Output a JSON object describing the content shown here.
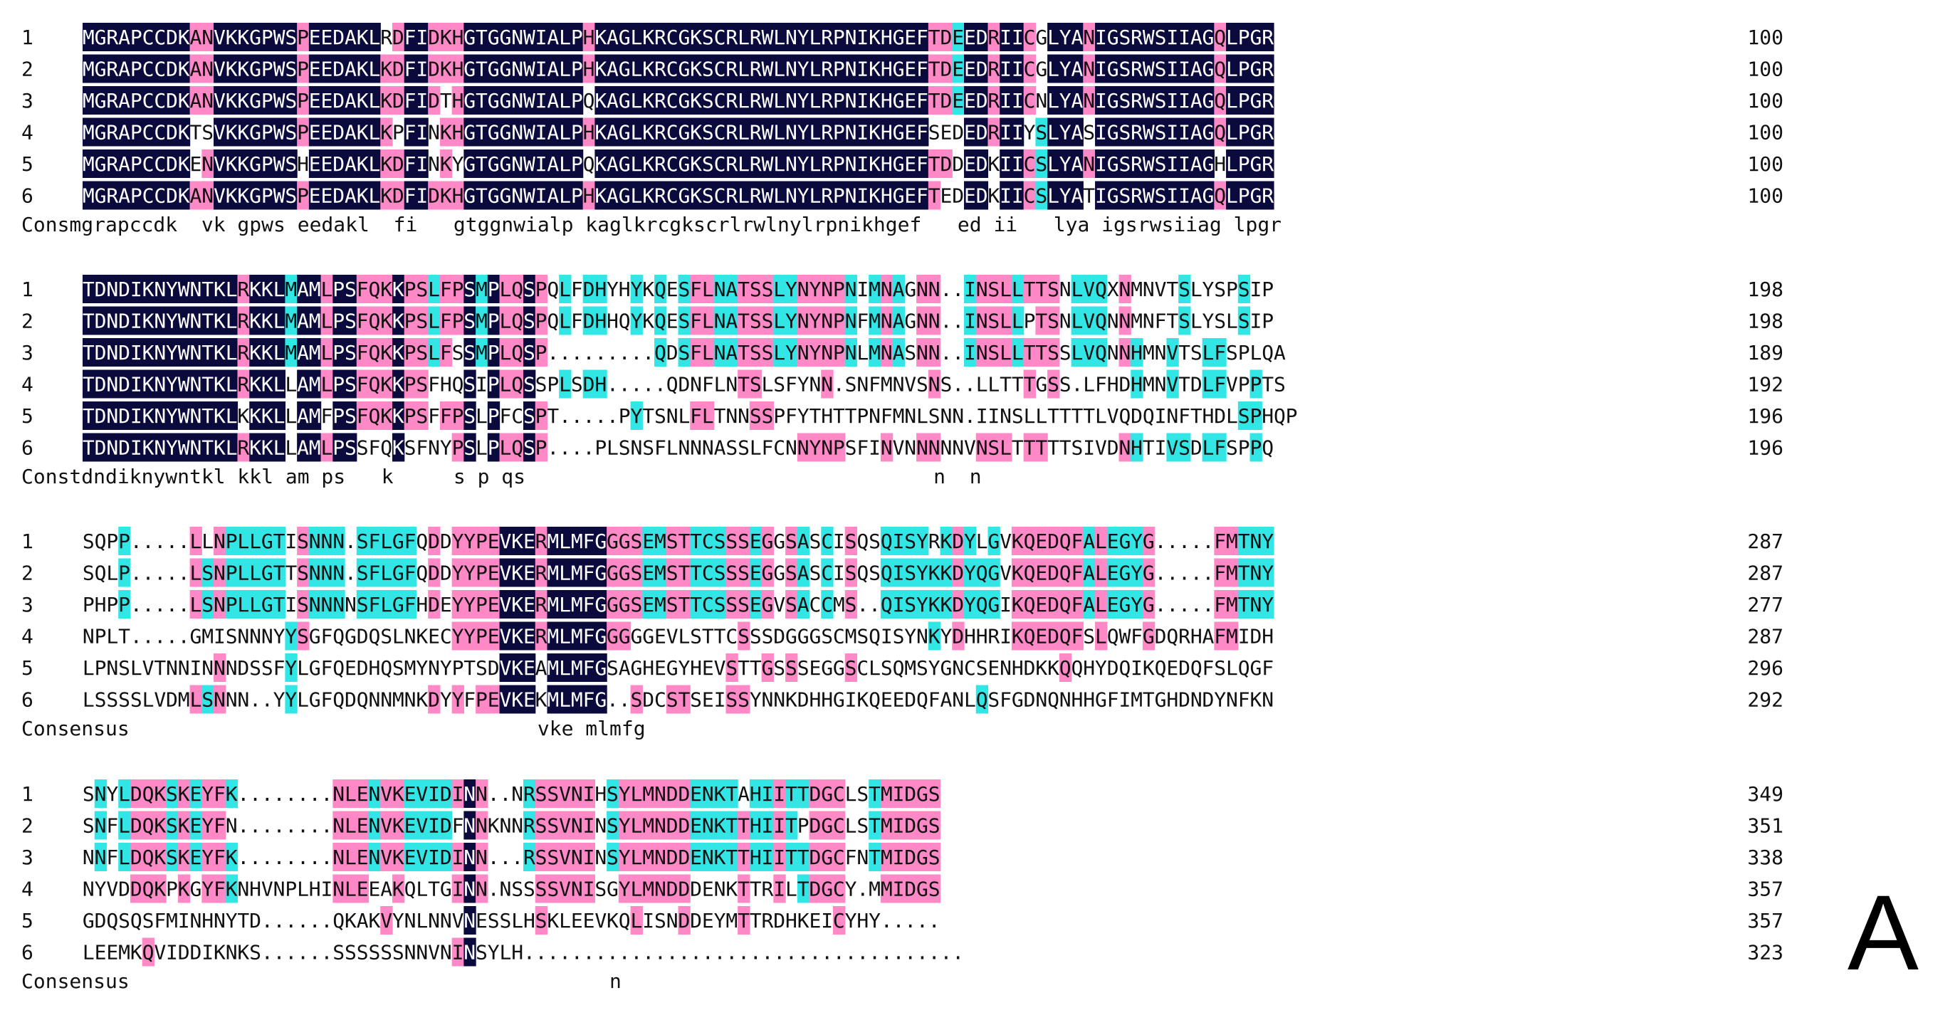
{
  "panel_label": "A",
  "colors": {
    "identical": "#0a0a3c",
    "high": "#ff88c6",
    "partial": "#33e6e6",
    "text_dark": "#111111",
    "text_light": "#ffffff"
  },
  "blocks": [
    {
      "rows": [
        {
          "id": "1",
          "seq": "MGRAPCCDKANVKKGPWSPEEDAKLRDFIDKHGTGGNWIALPHKAGLKRCGKSCRLRWLNYLRPNIKHGEFTDEEDRIICGLYANIGSRWSIIAGQLPGR",
          "end": "100"
        },
        {
          "id": "2",
          "seq": "MGRAPCCDKANVKKGPWSPEEDAKLKDFIDKHGTGGNWIALPHKAGLKRCGKSCRLRWLNYLRPNIKHGEFTDEEDRIICGLYANIGSRWSIIAGQLPGR",
          "end": "100"
        },
        {
          "id": "3",
          "seq": "MGRAPCCDKANVKKGPWSPEEDAKLKDFIDTHGTGGNWIALPQKAGLKRCGKSCRLRWLNYLRPNIKHGEFTDEEDRIICNLYANIGSRWSIIAGQLPGR",
          "end": "100"
        },
        {
          "id": "4",
          "seq": "MGRAPCCDKTSVKKGPWSPEEDAKLKPFINKHGTGGNWIALPHKAGLKRCGKSCRLRWLNYLRPNIKHGEFSEDEDRIIYSLYASIGSRWSIIAGQLPGR",
          "end": "100"
        },
        {
          "id": "5",
          "seq": "MGRAPCCDKENVKKGPWSHEEDAKLKDFINKYGTGGNWIALPQKAGLKRCGKSCRLRWLNYLRPNIKHGEFTDDEDKIICSLYANIGSRWSIIAGHLPGR",
          "end": "100"
        },
        {
          "id": "6",
          "seq": "MGRAPCCDKANVKKGPWSPEEDAKLKDFIDKHGTGGNWIALPHKAGLKRCGKSCRLRWLNYLRPNIKHGEFTEDEDKIICSLYATIGSRWSIIAGQLPGR",
          "end": "100"
        }
      ],
      "consensus": "Consmgrapccdk  vk gpws eedakl  fi   gtggnwialp kaglkrcgkscrlrwlnylrpnikhgef   ed ii   lya igsrwsiiag lpgr"
    },
    {
      "rows": [
        {
          "id": "1",
          "seq": "TDNDIKNYWNTKLRKKLMAMLPSFQKKPSLFPSMPLQSPQLFDHYHYKQESFLNATSSLYNYNPNIMNAGNN..INSLLTTSNLVQXNMNVTSLYSPSIP",
          "end": "198"
        },
        {
          "id": "2",
          "seq": "TDNDIKNYWNTKLRKKLMAMLPSFQKKPSLFPSMPLQSPQLFDHHQYKQESFLNATSSLYNYNPNFMNAGNN..INSLLPTSNLVQNNMNFTSLYSLSIP",
          "end": "198"
        },
        {
          "id": "3",
          "seq": "TDNDIKNYWNTKLRKKLMAMLPSFQKKPSLFSSMPLQSP.........QDSFLNATSSLYNYNPNLMNASNN..INSLLTTSSLVQNNHMNVTSLFSPLQA",
          "end": "189"
        },
        {
          "id": "4",
          "seq": "TDNDIKNYWNTKLRKKLLAMLPSFQKKPSFHQSIPLQSSPLSDH.....QDNFLNTSLSFYNN.SNFMNVSNS..LLTTTGSS.LFHDHMNVTDLFVPPTS",
          "end": "192"
        },
        {
          "id": "5",
          "seq": "TDNDIKNYWNTKLKKKLLAMFPSFQKKPSFFPSLPFCSPT.....PYTSNLFLTNNSSPFYTHTTPNFMNLSNN.IINSLLTTTTLVQDQINFTHDLSPHQP",
          "end": "196"
        },
        {
          "id": "6",
          "seq": "TDNDIKNYWNTKLRKKLLAMLPSSFQKSFNYPSLPLQSP....PLSNSFLNNNASSLFCNNYNPSFINVNNNNNVNSLTTTTTSIVDNHTIVSDLFSPPQ",
          "end": "196"
        }
      ],
      "consensus": "Constdndiknywntkl kkl am ps   k     s p qs                                  n  n"
    },
    {
      "rows": [
        {
          "id": "1",
          "seq": "SQPP.....LLNPLLGTISNNN.SFLGFQDDYYPEVKERMLMFGGGSEMSTTCSSSEGGSASCISQSQISYRKDYLGVKQEDQFALEGYG.....FMTNY",
          "end": "287"
        },
        {
          "id": "2",
          "seq": "SQLP.....LSNPLLGTTSNNN.SFLGFQDDYYPEVKERMLMFGGGSEMSTTCSSSEGGSASCISQSQISYKKDYQGVKQEDQFALEGYG.....FMTNY",
          "end": "287"
        },
        {
          "id": "3",
          "seq": "PHPP.....LSNPLLGTISNNNNSFLGFHDEYYPEVKERMLMFGGGSEMSTTCSSSEGVSACCMS..QISYKKDYQGIKQEDQFALEGYG.....FMTNY",
          "end": "277"
        },
        {
          "id": "4",
          "seq": "NPLT.....GMISNNNYYSGFQGDQSLNKECYYPEVKERMLMFGGGGGEVLSTTCSSSDGGGSCMSQISYNKYDHHRIKQEDQFSLQWFGDQRHAFMIDH",
          "end": "287"
        },
        {
          "id": "5",
          "seq": "LPNSLVTNNINNNDSSFYLGFQEDHQSMYNYPTSDVKEAMLMFGSAGHEGYHEVSTTGSSSEGGSCLSQMSYGNCSENHDKKQQHYDQIKQEDQFSLQGF",
          "end": "296"
        },
        {
          "id": "6",
          "seq": "LSSSSLVDMLSNNN..YYLGFQDQNNMNKDYYFPEVKEKMLMFG..SDCSTSEISSYNNKDHHGIKQEEDQFANLQSFGDNQNHHGFIMTGHDNDYNFKN",
          "end": "292"
        }
      ],
      "consensus": "Consensus                                  vke mlmfg"
    },
    {
      "rows": [
        {
          "id": "1",
          "seq": "SNYLDQKSKEYFK........NLENVKEVIDINN..NRSSVNIHSYLMNDDENKTAHIITTDGCLSTMIDGS",
          "end": "349"
        },
        {
          "id": "2",
          "seq": "SNFLDQKSKEYFN........NLENVKEVIDFNNKNNRSSVNINSYLMNDDENKTTHIITPDGCLSTMIDGS",
          "end": "351"
        },
        {
          "id": "3",
          "seq": "NNFLDQKSKEYFK........NLENVKEVIDINN...RSSVNINSYLMNDDENKTTHIITTDGCFNTMIDGS",
          "end": "338"
        },
        {
          "id": "4",
          "seq": "NYVDDQKPKGYFKNHVNPLHINLEEAKQLTGINN.NSSSSVNISGYLMNDDDENKTTRILTDGCY.MMIDGS",
          "end": "357"
        },
        {
          "id": "5",
          "seq": "GDQSQSFMINHNYTD......QKAKVYNLNNVNESSLHSKLEEVKQLISNDDEYMTTRDHKEICYHY.....",
          "end": "357"
        },
        {
          "id": "6",
          "seq": "LEEMKQVIDDIKNKS......SSSSSSNNVNINSYLH.....................................",
          "end": "323"
        }
      ],
      "consensus": "Consensus                                        n"
    }
  ]
}
